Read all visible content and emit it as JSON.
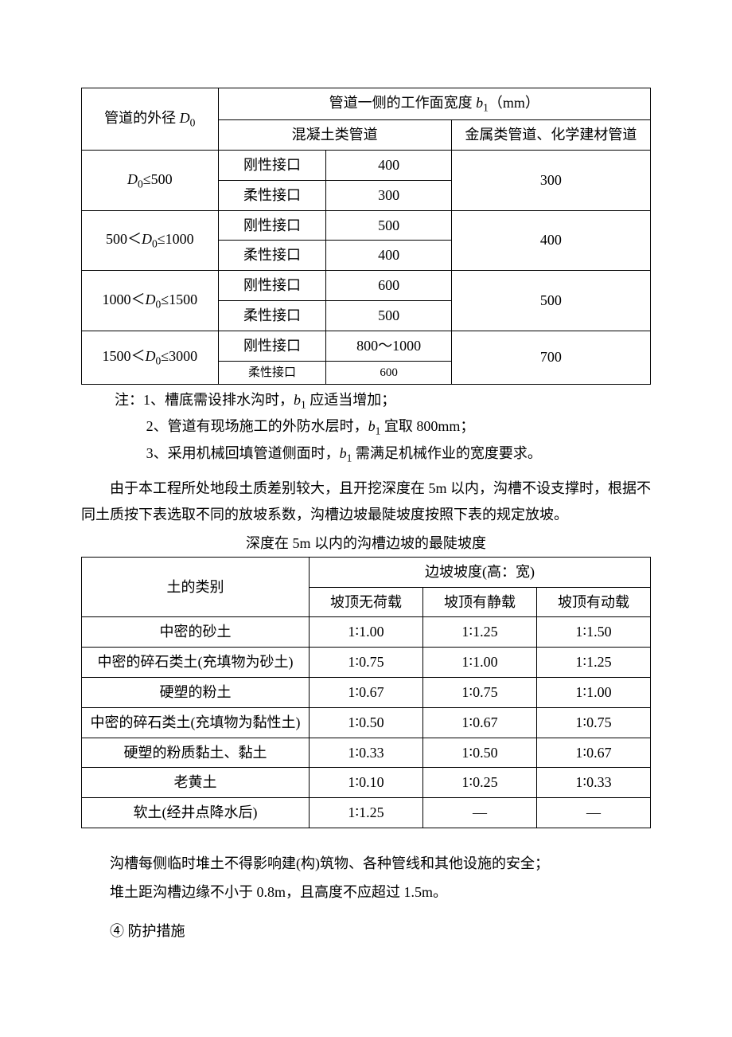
{
  "table1": {
    "header": {
      "rowspan_col": "管道的外径 D₀",
      "top_span": "管道一侧的工作面宽度 b₁（mm）",
      "sub1": "混凝土类管道",
      "sub2": "金属类管道、化学建材管道"
    },
    "groups": [
      {
        "range": "D₀≤500",
        "rows": [
          {
            "joint": "刚性接口",
            "concrete": "400"
          },
          {
            "joint": "柔性接口",
            "concrete": "300"
          }
        ],
        "metal": "300"
      },
      {
        "range": "500＜D₀≤1000",
        "rows": [
          {
            "joint": "刚性接口",
            "concrete": "500"
          },
          {
            "joint": "柔性接口",
            "concrete": "400"
          }
        ],
        "metal": "400"
      },
      {
        "range": "1000＜D₀≤1500",
        "rows": [
          {
            "joint": "刚性接口",
            "concrete": "600"
          },
          {
            "joint": "柔性接口",
            "concrete": "500"
          }
        ],
        "metal": "500"
      },
      {
        "range": "1500＜D₀≤3000",
        "rows": [
          {
            "joint": "刚性接口",
            "concrete": "800～1000",
            "small": false
          },
          {
            "joint": "柔性接口",
            "concrete": "600",
            "small": true
          }
        ],
        "metal": "700"
      }
    ]
  },
  "notes": {
    "n1": "注：1、槽底需设排水沟时，b₁应适当增加；",
    "n2": "2、管道有现场施工的外防水层时，b₁宜取 800mm；",
    "n3": "3、采用机械回填管道侧面时，b₁需满足机械作业的宽度要求。"
  },
  "paragraph1": "由于本工程所处地段土质差别较大，且开挖深度在 5m 以内，沟槽不设支撑时，根据不同土质按下表选取不同的放坡系数，沟槽边坡最陡坡度按照下表的规定放坡。",
  "table2_title": "深度在 5m 以内的沟槽边坡的最陡坡度",
  "table2": {
    "header": {
      "rowspan": "土的类别",
      "top_span": "边坡坡度(高：宽)",
      "c1": "坡顶无荷载",
      "c2": "坡顶有静载",
      "c3": "坡顶有动载"
    },
    "rows": [
      {
        "name": "中密的砂土",
        "v1": "1∶1.00",
        "v2": "1∶1.25",
        "v3": "1∶1.50"
      },
      {
        "name": "中密的碎石类土(充填物为砂土)",
        "v1": "1∶0.75",
        "v2": "1∶1.00",
        "v3": "1∶1.25"
      },
      {
        "name": "硬塑的粉土",
        "v1": "1∶0.67",
        "v2": "1∶0.75",
        "v3": "1∶1.00"
      },
      {
        "name": "中密的碎石类土(充填物为黏性土)",
        "v1": "1∶0.50",
        "v2": "1∶0.67",
        "v3": "1∶0.75"
      },
      {
        "name": "硬塑的粉质黏土、黏土",
        "v1": "1∶0.33",
        "v2": "1∶0.50",
        "v3": "1∶0.67"
      },
      {
        "name": "老黄土",
        "v1": "1∶0.10",
        "v2": "1∶0.25",
        "v3": "1∶0.33"
      },
      {
        "name": "软土(经井点降水后)",
        "v1": "1∶1.25",
        "v2": "—",
        "v3": "—"
      }
    ]
  },
  "bottom": {
    "line1": "沟槽每侧临时堆土不得影响建(构)筑物、各种管线和其他设施的安全；",
    "line2": "堆土距沟槽边缘不小于 0.8m，且高度不应超过 1.5m。"
  },
  "section4": "④ 防护措施"
}
